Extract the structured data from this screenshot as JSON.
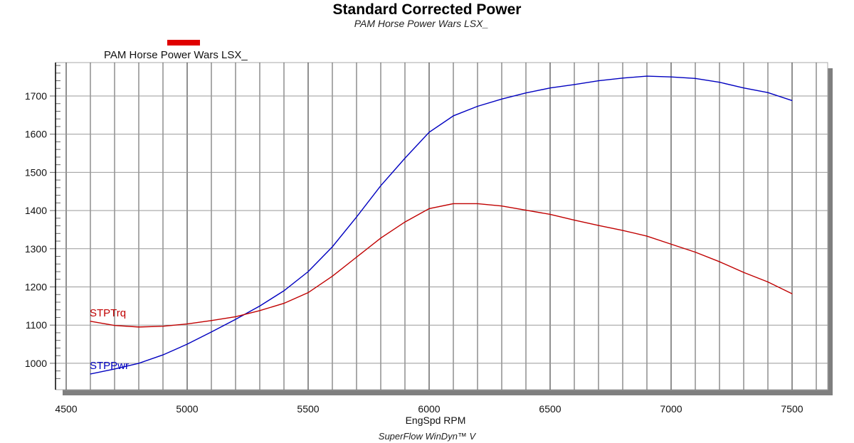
{
  "chart_data": {
    "type": "line",
    "title": "Standard Corrected Power",
    "subtitle": "PAM Horse Power Wars LSX_",
    "legend": [
      {
        "label": "PAM Horse Power Wars LSX_",
        "color": "#e00000"
      }
    ],
    "legend_placement": "top-left",
    "xlabel": "EngSpd RPM",
    "ylabel": "",
    "footer": "SuperFlow WinDyn™ V",
    "xlim": [
      4500,
      7650
    ],
    "ylim": [
      940,
      1790
    ],
    "x_ticks": [
      4500,
      5000,
      5500,
      6000,
      6500,
      7000,
      7500
    ],
    "y_ticks": [
      1000,
      1100,
      1200,
      1300,
      1400,
      1500,
      1600,
      1700
    ],
    "grid": true,
    "x": [
      4600,
      4700,
      4800,
      4900,
      5000,
      5100,
      5200,
      5300,
      5400,
      5500,
      5600,
      5700,
      5800,
      5900,
      6000,
      6100,
      6200,
      6300,
      6400,
      6500,
      6600,
      6700,
      6800,
      6900,
      7000,
      7100,
      7200,
      7300,
      7400,
      7500
    ],
    "series": [
      {
        "name": "STPPwr",
        "color": "#0000c0",
        "values": [
          972,
          985,
          1000,
          1022,
          1050,
          1082,
          1115,
          1150,
          1190,
          1240,
          1305,
          1383,
          1465,
          1537,
          1605,
          1648,
          1673,
          1692,
          1708,
          1721,
          1730,
          1740,
          1747,
          1752,
          1750,
          1746,
          1736,
          1721,
          1709,
          1688
        ]
      },
      {
        "name": "STPTrq",
        "color": "#c00000",
        "values": [
          1110,
          1099,
          1095,
          1097,
          1103,
          1112,
          1122,
          1138,
          1157,
          1185,
          1228,
          1278,
          1328,
          1370,
          1405,
          1418,
          1418,
          1412,
          1401,
          1390,
          1375,
          1361,
          1348,
          1333,
          1312,
          1291,
          1266,
          1238,
          1213,
          1182
        ]
      }
    ]
  }
}
